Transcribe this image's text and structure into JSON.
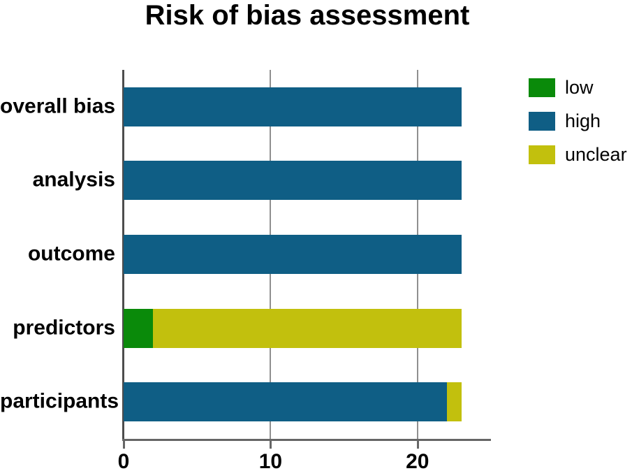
{
  "title": "Risk of bias assessment",
  "colors": {
    "low": "#0a8a0a",
    "high": "#0f5e85",
    "unclear": "#c2c00d",
    "gridline": "#8f8f8f",
    "y_axis_line": "#4d4d4d",
    "x_axis_line": "#666666",
    "text": "#000000"
  },
  "legend": {
    "position": "right",
    "items": [
      {
        "key": "low",
        "label": "low"
      },
      {
        "key": "high",
        "label": "high"
      },
      {
        "key": "unclear",
        "label": "unclear"
      }
    ]
  },
  "chart_data": {
    "type": "bar",
    "orientation": "horizontal",
    "stacked": true,
    "title": "Risk of bias assessment",
    "categories": [
      "overall bias",
      "analysis",
      "outcome",
      "predictors",
      "participants"
    ],
    "series": [
      {
        "name": "low",
        "values": [
          0,
          0,
          0,
          2,
          0
        ]
      },
      {
        "name": "high",
        "values": [
          23,
          23,
          23,
          0,
          22
        ]
      },
      {
        "name": "unclear",
        "values": [
          0,
          0,
          0,
          21,
          1
        ]
      }
    ],
    "xlim": [
      0,
      25
    ],
    "xticks": [
      0,
      10,
      20
    ],
    "grid": true,
    "legend_position": "right",
    "xlabel": "",
    "ylabel": ""
  }
}
